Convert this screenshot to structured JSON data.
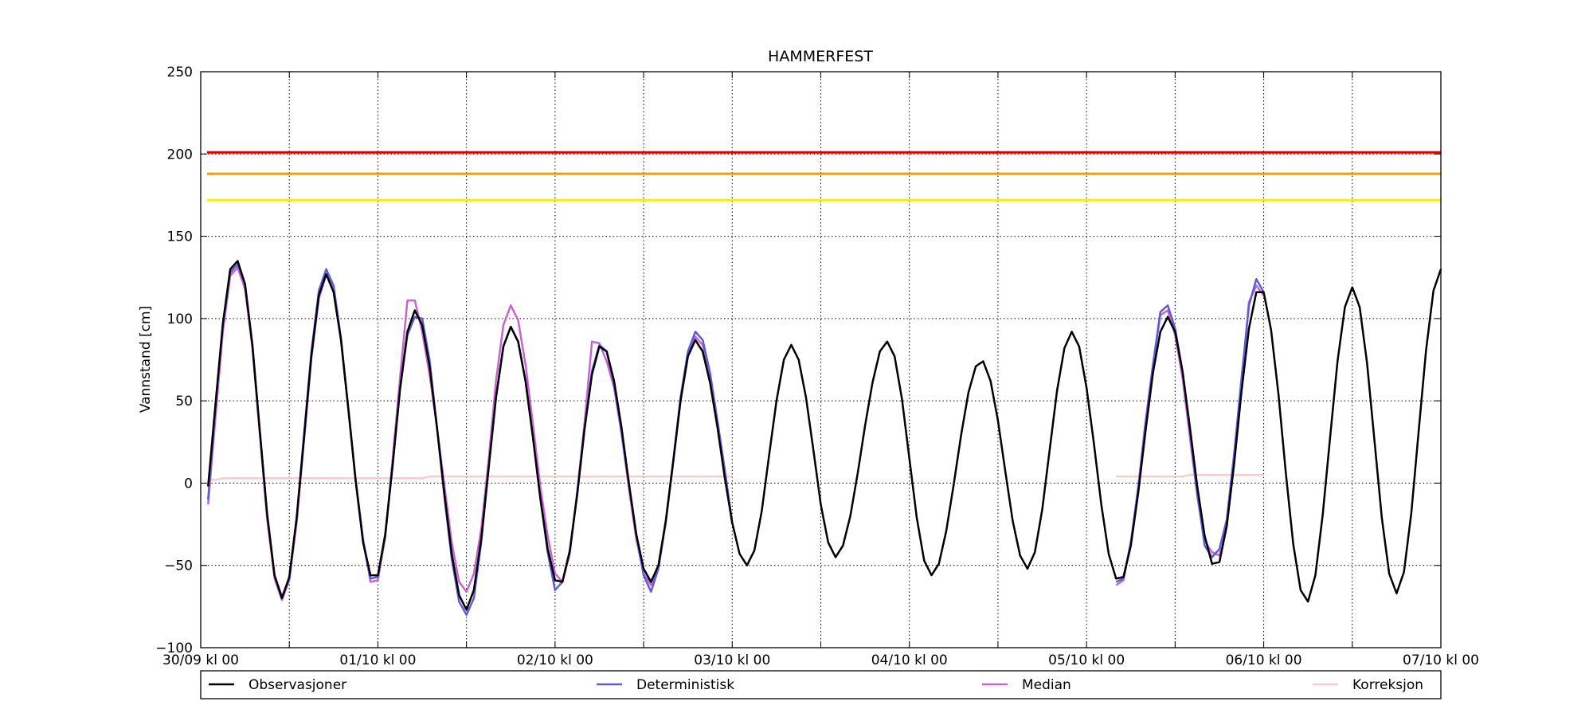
{
  "chart_data": {
    "type": "line",
    "title": "HAMMERFEST",
    "ylabel": "Vannstand [cm]",
    "xlim": [
      0,
      168
    ],
    "xticks": [
      {
        "value": 0,
        "label": "30/09 kl 00"
      },
      {
        "value": 24,
        "label": "01/10 kl 00"
      },
      {
        "value": 48,
        "label": "02/10 kl 00"
      },
      {
        "value": 72,
        "label": "03/10 kl 00"
      },
      {
        "value": 96,
        "label": "04/10 kl 00"
      },
      {
        "value": 120,
        "label": "05/10 kl 00"
      },
      {
        "value": 144,
        "label": "06/10 kl 00"
      },
      {
        "value": 168,
        "label": "07/10 kl 00"
      }
    ],
    "xminorticks": [
      12,
      36,
      60,
      84,
      108,
      132,
      156
    ],
    "ylim": [
      -100,
      250
    ],
    "yticks": [
      {
        "value": -100,
        "label": "−100"
      },
      {
        "value": -50,
        "label": "−50"
      },
      0,
      50,
      100,
      150,
      200,
      250
    ],
    "grid": true,
    "legend": "bottom",
    "hlines": [
      {
        "value": 201,
        "color": "#e00000"
      },
      {
        "value": 188,
        "color": "#ff9900"
      },
      {
        "value": 172,
        "color": "#f2f200"
      }
    ],
    "x": [
      1,
      2,
      3,
      4,
      5,
      6,
      7,
      8,
      9,
      10,
      11,
      12,
      13,
      14,
      15,
      16,
      17,
      18,
      19,
      20,
      21,
      22,
      23,
      24,
      25,
      26,
      27,
      28,
      29,
      30,
      31,
      32,
      33,
      34,
      35,
      36,
      37,
      38,
      39,
      40,
      41,
      42,
      43,
      44,
      45,
      46,
      47,
      48,
      49,
      50,
      51,
      52,
      53,
      54,
      55,
      56,
      57,
      58,
      59,
      60,
      61,
      62,
      63,
      64,
      65,
      66,
      67,
      68,
      69,
      70,
      71,
      72,
      73,
      74,
      75,
      76,
      77,
      78,
      79,
      80,
      81,
      82,
      83,
      84,
      85,
      86,
      87,
      88,
      89,
      90,
      91,
      92,
      93,
      94,
      95,
      96,
      97,
      98,
      99,
      100,
      101,
      102,
      103,
      104,
      105,
      106,
      107,
      108,
      109,
      110,
      111,
      112,
      113,
      114,
      115,
      116,
      117,
      118,
      119,
      120,
      121,
      122,
      123,
      124,
      125,
      126,
      127,
      128,
      129,
      130,
      131,
      132,
      133,
      134,
      135,
      136,
      137,
      138,
      139,
      140,
      141,
      142,
      143,
      144,
      145,
      146,
      147,
      148,
      149,
      150,
      151,
      152,
      153,
      154,
      155,
      156,
      157,
      158,
      159,
      160,
      161,
      162,
      163,
      164,
      165,
      166,
      167,
      168
    ],
    "series": [
      {
        "name": "Observasjoner",
        "color": "#000000",
        "values": [
          -2,
          48,
          97,
          130,
          135,
          121,
          84,
          32,
          -19,
          -56,
          -70,
          -57,
          -21,
          28,
          78,
          114,
          127,
          116,
          87,
          45,
          1,
          -36,
          -56,
          -56,
          -31,
          11,
          57,
          92,
          105,
          96,
          71,
          34,
          -6,
          -43,
          -68,
          -77,
          -65,
          -34,
          9,
          52,
          83,
          95,
          86,
          62,
          28,
          -9,
          -40,
          -59,
          -60,
          -41,
          -7,
          33,
          66,
          83,
          80,
          62,
          34,
          0,
          -31,
          -52,
          -60,
          -50,
          -23,
          13,
          50,
          77,
          87,
          80,
          61,
          34,
          3,
          -24,
          -43,
          -50,
          -41,
          -17,
          17,
          50,
          75,
          84,
          75,
          52,
          20,
          -13,
          -36,
          -45,
          -38,
          -20,
          6,
          35,
          61,
          80,
          86,
          77,
          51,
          15,
          -21,
          -47,
          -56,
          -49,
          -29,
          -1,
          29,
          55,
          71,
          74,
          62,
          38,
          7,
          -23,
          -44,
          -52,
          -42,
          -16,
          20,
          56,
          82,
          92,
          83,
          58,
          24,
          -13,
          -43,
          -58,
          -57,
          -38,
          -6,
          32,
          67,
          92,
          101,
          92,
          68,
          34,
          -2,
          -32,
          -49,
          -48,
          -26,
          12,
          56,
          94,
          116,
          116,
          93,
          54,
          6,
          -37,
          -65,
          -72,
          -56,
          -19,
          28,
          74,
          107,
          119,
          107,
          73,
          26,
          -21,
          -55,
          -67,
          -54,
          -18,
          32,
          81,
          117,
          130
        ]
      },
      {
        "name": "Deterministisk",
        "color": "#5c5cd6",
        "values": [
          -10,
          45,
          96,
          128,
          133,
          121,
          84,
          32,
          -19,
          -56,
          -69,
          -58,
          -21,
          30,
          80,
          117,
          130,
          120,
          88,
          45,
          1,
          -36,
          -58,
          -57,
          -31,
          11,
          57,
          90,
          101,
          100,
          75,
          34,
          -8,
          -46,
          -72,
          -80,
          -70,
          -36,
          9,
          52,
          83,
          95,
          86,
          62,
          28,
          -9,
          -42,
          -65,
          -60,
          -41,
          -7,
          33,
          68,
          84,
          80,
          60,
          32,
          0,
          -31,
          -56,
          -66,
          -52,
          -23,
          13,
          52,
          80,
          92,
          87,
          67,
          38,
          8,
          -24,
          null,
          null,
          null,
          null,
          null,
          null,
          null,
          null,
          null,
          null,
          null,
          null,
          null,
          null,
          null,
          null,
          null,
          null,
          null,
          null,
          null,
          null,
          null,
          null,
          null,
          null,
          null,
          null,
          null,
          null,
          null,
          null,
          null,
          null,
          null,
          null,
          null,
          null,
          null,
          null,
          null,
          null,
          null,
          null,
          null,
          null,
          null,
          null,
          null,
          null,
          null,
          -60,
          -58,
          -36,
          -4,
          36,
          72,
          104,
          108,
          94,
          68,
          32,
          -6,
          -38,
          -45,
          -40,
          -22,
          18,
          64,
          108,
          124,
          116,
          null,
          null,
          null,
          null,
          null,
          null,
          null,
          null,
          null,
          null,
          null,
          null,
          null,
          null,
          null,
          null,
          null,
          null,
          null,
          null,
          null,
          null,
          null,
          null
        ]
      },
      {
        "name": "Median",
        "color": "#c765d0",
        "values": [
          -13,
          40,
          92,
          126,
          131,
          118,
          82,
          30,
          -22,
          -58,
          -71,
          -59,
          -24,
          26,
          76,
          112,
          127,
          118,
          87,
          45,
          2,
          -34,
          -60,
          -59,
          -33,
          15,
          64,
          111,
          111,
          92,
          66,
          34,
          -1,
          -36,
          -60,
          -66,
          -55,
          -28,
          14,
          62,
          96,
          108,
          99,
          72,
          36,
          -2,
          -32,
          -55,
          -60,
          -43,
          -5,
          37,
          86,
          85,
          74,
          58,
          30,
          -3,
          -34,
          -55,
          -62,
          -52,
          -24,
          12,
          50,
          78,
          89,
          84,
          64,
          35,
          5,
          -25,
          null,
          null,
          null,
          null,
          null,
          null,
          null,
          null,
          null,
          null,
          null,
          null,
          null,
          null,
          null,
          null,
          null,
          null,
          null,
          null,
          null,
          null,
          null,
          null,
          null,
          null,
          null,
          null,
          null,
          null,
          null,
          null,
          null,
          null,
          null,
          null,
          null,
          null,
          null,
          null,
          null,
          null,
          null,
          null,
          null,
          null,
          null,
          null,
          null,
          null,
          null,
          -62,
          -59,
          -36,
          -2,
          38,
          72,
          102,
          105,
          90,
          64,
          28,
          -8,
          -35,
          -42,
          -44,
          -24,
          16,
          60,
          110,
          120,
          114,
          null,
          null,
          null,
          null,
          null,
          null,
          null,
          null,
          null,
          null,
          null,
          null,
          null,
          null,
          null,
          null,
          null,
          null,
          null,
          null,
          null,
          null,
          null,
          null
        ]
      },
      {
        "name": "Korreksjon",
        "color": "#f6cccc",
        "values": [
          2,
          2,
          3,
          3,
          3,
          3,
          3,
          3,
          3,
          3,
          3,
          3,
          3,
          3,
          3,
          3,
          3,
          3,
          3,
          3,
          3,
          3,
          3,
          3,
          3,
          3,
          3,
          3,
          3,
          3,
          4,
          4,
          4,
          4,
          4,
          4,
          4,
          4,
          4,
          4,
          4,
          4,
          4,
          4,
          4,
          4,
          4,
          4,
          4,
          4,
          4,
          4,
          4,
          4,
          4,
          4,
          4,
          4,
          4,
          4,
          4,
          4,
          4,
          4,
          4,
          4,
          4,
          4,
          4,
          4,
          4,
          4,
          null,
          null,
          null,
          null,
          null,
          null,
          null,
          null,
          null,
          null,
          null,
          null,
          null,
          null,
          null,
          null,
          null,
          null,
          null,
          null,
          null,
          null,
          null,
          null,
          null,
          null,
          null,
          null,
          null,
          null,
          null,
          null,
          null,
          null,
          null,
          null,
          null,
          null,
          null,
          null,
          null,
          null,
          null,
          null,
          null,
          null,
          null,
          null,
          null,
          null,
          null,
          4,
          4,
          4,
          4,
          4,
          4,
          4,
          4,
          4,
          4,
          5,
          5,
          5,
          5,
          5,
          5,
          5,
          5,
          5,
          5,
          5,
          null,
          null,
          null,
          null,
          null,
          null,
          null,
          null,
          null,
          null,
          null,
          null,
          null,
          null,
          null,
          null,
          null,
          null,
          null,
          null,
          null,
          null,
          null,
          null
        ]
      }
    ]
  }
}
